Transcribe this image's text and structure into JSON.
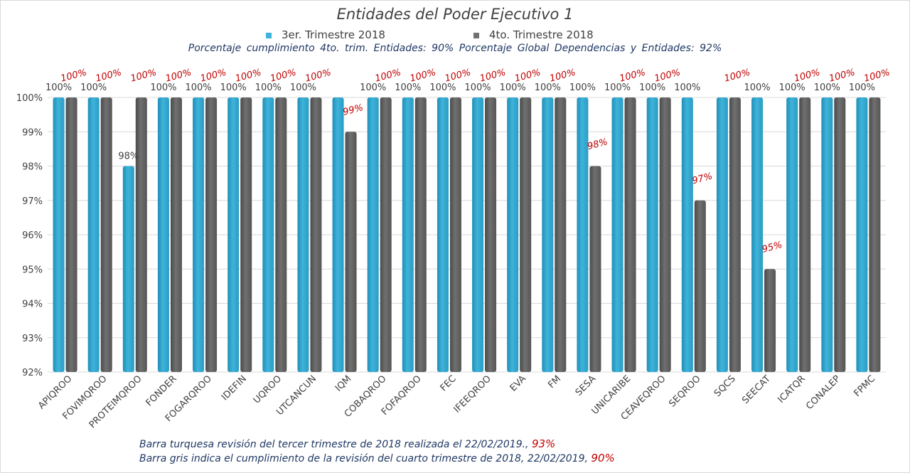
{
  "title": "Entidades del Poder Ejecutivo 1",
  "legend": {
    "s1_label": "3er. Trimestre 2018",
    "s2_label": "4to. Trimestre 2018"
  },
  "subtitle": "Porcentaje cumplimiento  4to. trim. Entidades: 90%   Porcentaje Global Dependencias y Entidades: 92%",
  "notes": {
    "line1_text": "Barra turquesa revisión del tercer trimestre de 2018 realizada el  22/02/2019.,",
    "line1_pct": "93%",
    "line2_text": "Barra gris indica el cumplimiento de la revisión del cuarto trimestre de 2018,  22/02/2019,",
    "line2_pct": "90%"
  },
  "colors": {
    "s1": "#3fb3d9",
    "s2": "#707070",
    "label1": "#404040",
    "label2": "#c00000",
    "grid": "#d9d9d9",
    "axis_text": "#404040"
  },
  "chart_data": {
    "type": "bar",
    "title": "Entidades del Poder Ejecutivo 1",
    "categories": [
      "APIQROO",
      "FOVIMQROO",
      "PROTEIMQROO",
      "FONDER",
      "FOGARQROO",
      "IDEFIN",
      "UQROO",
      "UTCANCUN",
      "IQM",
      "COBAQROO",
      "FOFAQROO",
      "FEC",
      "IFEEQROO",
      "EVA",
      "FM",
      "SESA",
      "UNICARIBE",
      "CEAVEQROO",
      "SEQROO",
      "SQCS",
      "SEECAT",
      "ICATQR",
      "CONALEP",
      "FPMC"
    ],
    "series": [
      {
        "name": "3er. Trimestre 2018",
        "values": [
          100,
          100,
          98,
          100,
          100,
          100,
          100,
          100,
          100,
          100,
          100,
          100,
          100,
          100,
          100,
          100,
          100,
          100,
          100,
          100,
          100,
          100,
          100,
          100
        ]
      },
      {
        "name": "4to. Trimestre 2018",
        "values": [
          100,
          100,
          100,
          100,
          100,
          100,
          100,
          100,
          99,
          100,
          100,
          100,
          100,
          100,
          100,
          98,
          100,
          100,
          97,
          100,
          95,
          100,
          100,
          100
        ]
      }
    ],
    "series1_labels": [
      "100%",
      "100%",
      "98%",
      "100%",
      "100%",
      "100%",
      "100%",
      "100%",
      "",
      "100%",
      "100%",
      "100%",
      "100%",
      "100%",
      "100%",
      "100%",
      "100%",
      "100%",
      "100%",
      "",
      "100%",
      "100%",
      "100%",
      "100%"
    ],
    "series2_labels": [
      "100%",
      "100%",
      "100%",
      "100%",
      "100%",
      "100%",
      "100%",
      "100%",
      "99%",
      "100%",
      "100%",
      "100%",
      "100%",
      "100%",
      "100%",
      "98%",
      "100%",
      "100%",
      "97%",
      "100%",
      "95%",
      "100%",
      "100%",
      "100%"
    ],
    "y_ticks": [
      "92%",
      "93%",
      "94%",
      "95%",
      "96%",
      "97%",
      "98%",
      "99%",
      "100%"
    ],
    "ylim": [
      92,
      100
    ],
    "grid": true,
    "legend_position": "top"
  }
}
